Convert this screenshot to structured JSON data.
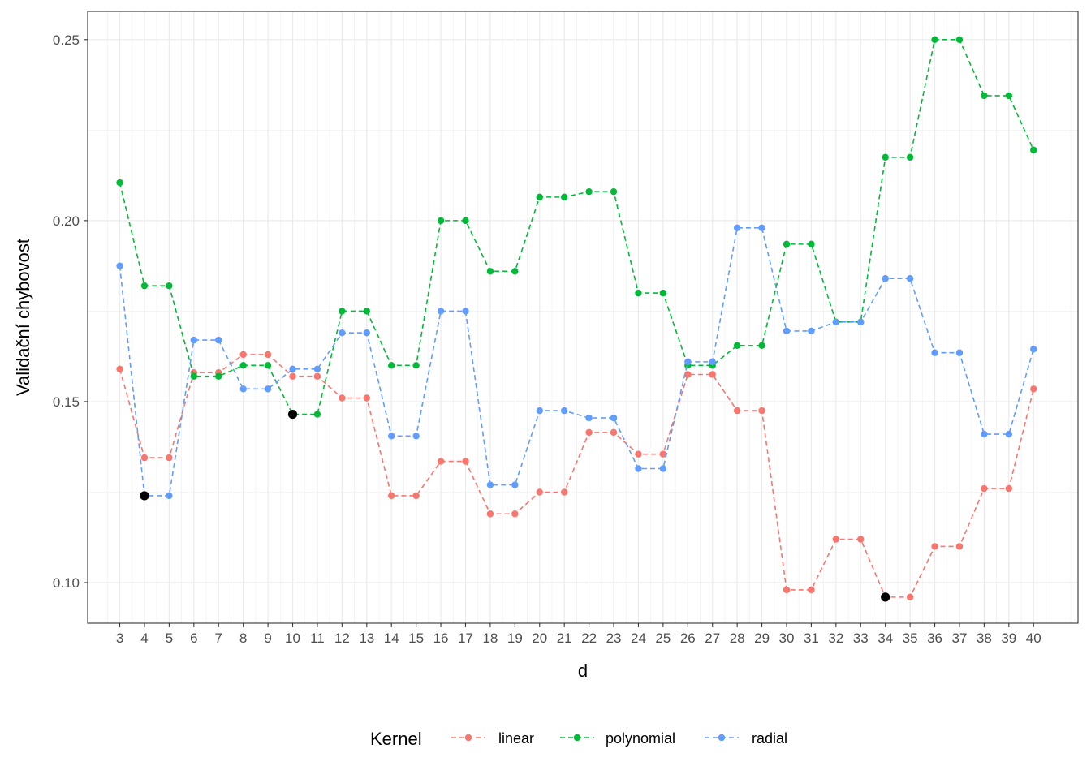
{
  "chart_data": {
    "type": "line",
    "xlabel": "d",
    "ylabel": "Validační chybovost",
    "x": [
      3,
      4,
      5,
      6,
      7,
      8,
      9,
      10,
      11,
      12,
      13,
      14,
      15,
      16,
      17,
      18,
      19,
      20,
      21,
      22,
      23,
      24,
      25,
      26,
      27,
      28,
      29,
      30,
      31,
      32,
      33,
      34,
      35,
      36,
      37,
      38,
      39,
      40
    ],
    "x_tick_labels": [
      "3",
      "4",
      "5",
      "6",
      "7",
      "8",
      "9",
      "10",
      "11",
      "12",
      "13",
      "14",
      "15",
      "16",
      "17",
      "18",
      "19",
      "20",
      "21",
      "22",
      "23",
      "24",
      "25",
      "26",
      "27",
      "28",
      "29",
      "30",
      "31",
      "32",
      "33",
      "34",
      "35",
      "36",
      "37",
      "38",
      "39",
      "40"
    ],
    "xlim": [
      1.7,
      41.8
    ],
    "ylim": [
      0.0888,
      0.2578
    ],
    "y_ticks": [
      0.1,
      0.15,
      0.2,
      0.25
    ],
    "y_tick_labels": [
      "0.10",
      "0.15",
      "0.20",
      "0.25"
    ],
    "y_minor_ticks": [
      0.125,
      0.175,
      0.225
    ],
    "grid": true,
    "legend": {
      "title": "Kernel",
      "position": "bottom"
    },
    "series": [
      {
        "name": "linear",
        "color": "#F8766D",
        "line_style": "dashed",
        "values": [
          0.159,
          0.1345,
          0.1345,
          0.158,
          0.158,
          0.163,
          0.163,
          0.157,
          0.157,
          0.151,
          0.151,
          0.124,
          0.124,
          0.1335,
          0.1335,
          0.119,
          0.119,
          0.125,
          0.125,
          0.1415,
          0.1415,
          0.1355,
          0.1355,
          0.1575,
          0.1575,
          0.1475,
          0.1475,
          0.098,
          0.098,
          0.112,
          0.112,
          0.096,
          0.096,
          0.11,
          0.11,
          0.126,
          0.126,
          0.1535
        ]
      },
      {
        "name": "polynomial",
        "color": "#00BA38",
        "line_style": "dashed",
        "values": [
          0.2105,
          0.182,
          0.182,
          0.157,
          0.157,
          0.16,
          0.16,
          0.1465,
          0.1465,
          0.175,
          0.175,
          0.16,
          0.16,
          0.2,
          0.2,
          0.186,
          0.186,
          0.2065,
          0.2065,
          0.208,
          0.208,
          0.18,
          0.18,
          0.16,
          0.16,
          0.1655,
          0.1655,
          0.1935,
          0.1935,
          0.172,
          0.172,
          0.2175,
          0.2175,
          0.25,
          0.25,
          0.2345,
          0.2345,
          0.2195
        ]
      },
      {
        "name": "radial",
        "color": "#619CFF",
        "line_style": "dashed",
        "values": [
          0.1875,
          0.124,
          0.124,
          0.167,
          0.167,
          0.1535,
          0.1535,
          0.159,
          0.159,
          0.169,
          0.169,
          0.1405,
          0.1405,
          0.175,
          0.175,
          0.127,
          0.127,
          0.1475,
          0.1475,
          0.1455,
          0.1455,
          0.1315,
          0.1315,
          0.161,
          0.161,
          0.198,
          0.198,
          0.1695,
          0.1695,
          0.172,
          0.172,
          0.184,
          0.184,
          0.1635,
          0.1635,
          0.141,
          0.141,
          0.1645
        ]
      }
    ],
    "highlighted_points": [
      {
        "x": 4,
        "y": 0.124,
        "color": "#000000"
      },
      {
        "x": 10,
        "y": 0.1465,
        "color": "#000000"
      },
      {
        "x": 34,
        "y": 0.096,
        "color": "#000000"
      }
    ]
  }
}
